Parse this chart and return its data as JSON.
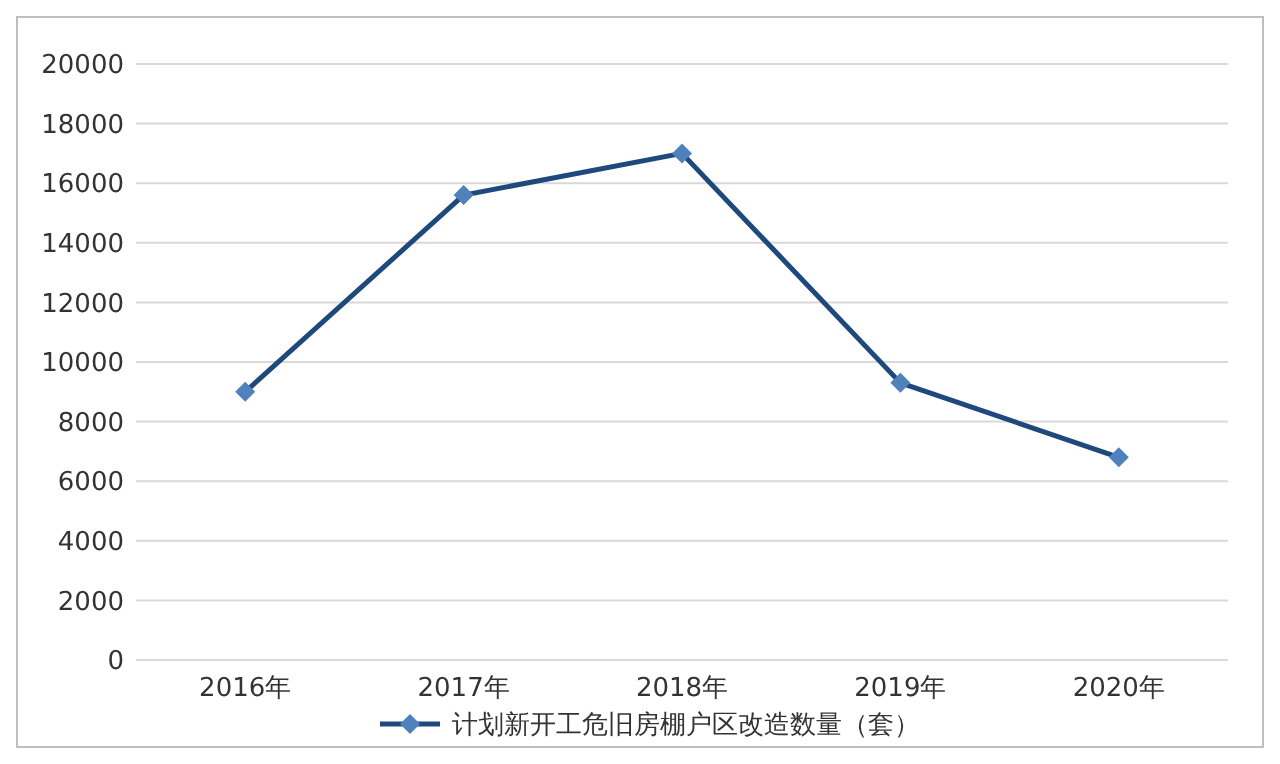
{
  "chart_data": {
    "type": "line",
    "categories": [
      "2016年",
      "2017年",
      "2018年",
      "2019年",
      "2020年"
    ],
    "series": [
      {
        "name": "计划新开工危旧房棚户区改造数量（套）",
        "color": "#1f497d",
        "colors": [
          "#4f81bd",
          "#4f81bd",
          "#4f81bd",
          "#4f81bd",
          "#4f81bd"
        ],
        "values": [
          9000,
          15600,
          17000,
          9300,
          6800
        ]
      }
    ],
    "ylim": [
      0,
      20000
    ],
    "yticks": [
      0,
      2000,
      4000,
      6000,
      8000,
      10000,
      12000,
      14000,
      16000,
      18000,
      20000
    ],
    "grid": "y",
    "legend": "bottom",
    "marker": "diamond",
    "line_style": "solid"
  }
}
